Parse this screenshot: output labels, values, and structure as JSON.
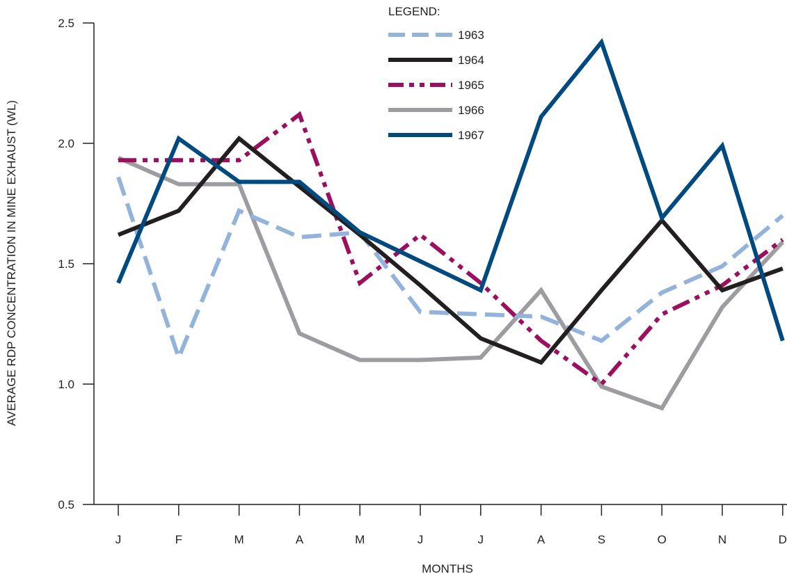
{
  "chart_data": {
    "type": "line",
    "xlabel": "MONTHS",
    "ylabel": "AVERAGE RDP CONCENTRATION IN MINE EXHAUST (WL)",
    "categories": [
      "J",
      "F",
      "M",
      "A",
      "M",
      "J",
      "J",
      "A",
      "S",
      "O",
      "N",
      "D"
    ],
    "ylim": [
      0.5,
      2.5
    ],
    "yticks": [
      "0.5",
      "1.0",
      "1.5",
      "2.0",
      "2.5"
    ],
    "grid": false,
    "legend": {
      "title": "LEGEND:",
      "placement": "top-center"
    },
    "series": [
      {
        "name": "1963",
        "color": "#93b3da",
        "style": "dashed",
        "values": [
          1.86,
          1.11,
          1.72,
          1.61,
          1.63,
          1.3,
          1.29,
          1.28,
          1.18,
          1.38,
          1.49,
          1.7
        ]
      },
      {
        "name": "1964",
        "color": "#231f20",
        "style": "solid",
        "values": [
          1.62,
          1.72,
          2.02,
          1.82,
          1.62,
          1.41,
          1.19,
          1.09,
          1.39,
          1.68,
          1.39,
          1.48
        ]
      },
      {
        "name": "1965",
        "color": "#9c0f5f",
        "style": "dash-dot-dot",
        "values": [
          1.93,
          1.93,
          1.93,
          2.12,
          1.42,
          1.62,
          1.42,
          1.18,
          1.0,
          1.29,
          1.41,
          1.6
        ]
      },
      {
        "name": "1966",
        "color": "#9d9da1",
        "style": "solid",
        "values": [
          1.94,
          1.83,
          1.83,
          1.21,
          1.1,
          1.1,
          1.11,
          1.39,
          0.99,
          0.9,
          1.32,
          1.59
        ]
      },
      {
        "name": "1967",
        "color": "#004a80",
        "style": "solid",
        "values": [
          1.42,
          2.02,
          1.84,
          1.84,
          1.63,
          1.51,
          1.39,
          2.11,
          2.42,
          1.69,
          1.99,
          1.18
        ]
      }
    ]
  }
}
